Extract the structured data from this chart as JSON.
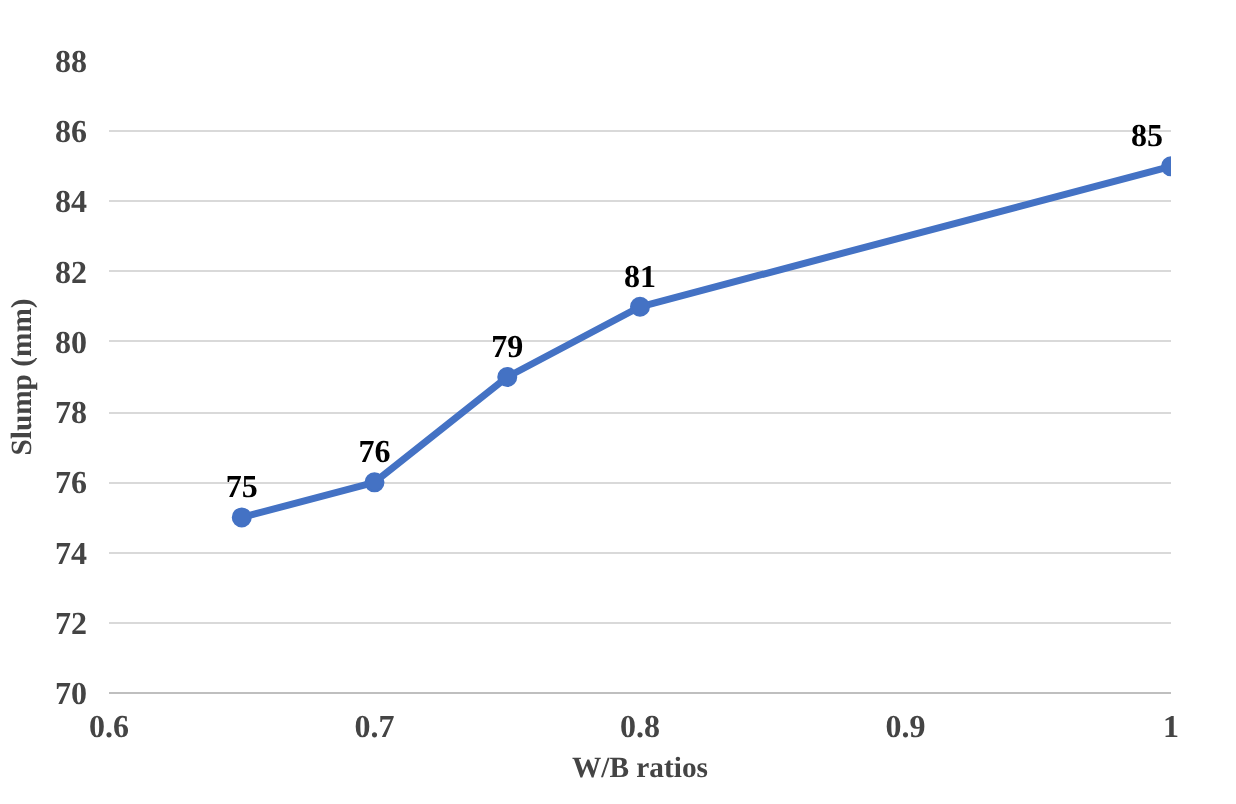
{
  "chart_data": {
    "type": "line",
    "xlabel": "W/B ratios",
    "ylabel": "Slump (mm)",
    "x": [
      0.65,
      0.7,
      0.75,
      0.8,
      1
    ],
    "series": [
      {
        "color": "#4472c4",
        "values": [
          75,
          76,
          79,
          81,
          85
        ]
      }
    ],
    "xlim": [
      0.6,
      1
    ],
    "xticks": [
      0.6,
      0.7,
      0.8,
      0.9,
      1
    ],
    "ylim": [
      70,
      88
    ],
    "yticks": [
      70,
      72,
      74,
      76,
      78,
      80,
      82,
      84,
      86,
      88
    ],
    "grid": "y",
    "marker": "circle",
    "line_style": "solid",
    "data_labels": true
  }
}
